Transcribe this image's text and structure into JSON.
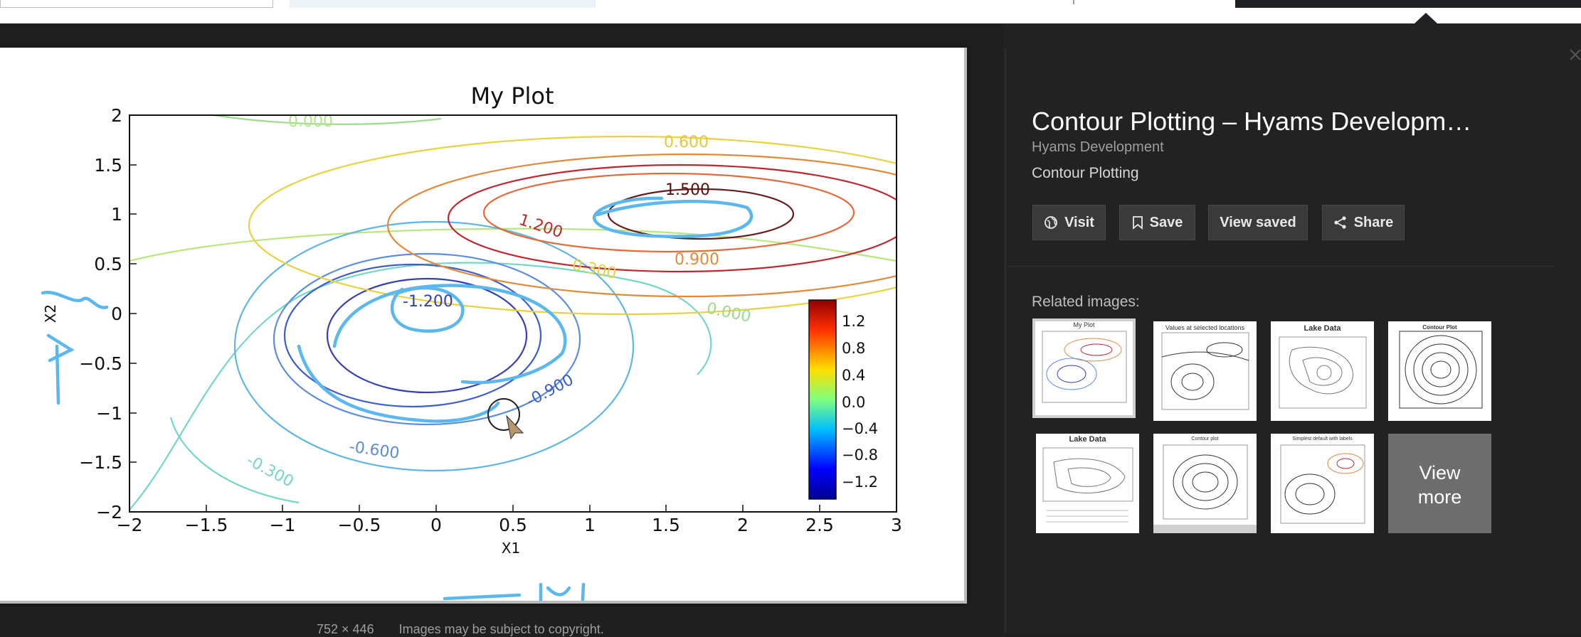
{
  "viewer": {
    "caption_dimensions": "752 × 446",
    "caption_copyright": "Images may be subject to copyright."
  },
  "detail": {
    "title": "Contour Plotting – Hyams Developm…",
    "site": "Hyams Development",
    "subtitle": "Contour Plotting",
    "buttons": {
      "visit": "Visit",
      "save": "Save",
      "view_saved": "View saved",
      "share": "Share"
    },
    "related_label": "Related images:",
    "related": [
      {
        "caption": "My Plot"
      },
      {
        "caption": "Values at selected locations"
      },
      {
        "caption": "Lake Data"
      },
      {
        "caption": "Contour Plot"
      },
      {
        "caption": "Lake Data"
      },
      {
        "caption": "Contour plot"
      },
      {
        "caption": "Simplest default with labels"
      },
      {
        "caption": ""
      }
    ],
    "view_more_line1": "View",
    "view_more_line2": "more"
  },
  "chart_data": {
    "type": "contour",
    "title": "My Plot",
    "xlabel": "X1",
    "ylabel": "X2",
    "xlim": [
      -2,
      3
    ],
    "ylim": [
      -2,
      2
    ],
    "xticks": [
      "−2",
      "−1.5",
      "−1",
      "−0.5",
      "0",
      "0.5",
      "1",
      "1.5",
      "2",
      "2.5",
      "3"
    ],
    "yticks": [
      "2",
      "1.5",
      "1",
      "0.5",
      "0",
      "−0.5",
      "−1",
      "−1.5",
      "−2"
    ],
    "colorbar_ticks": [
      "1.2",
      "0.8",
      "0.4",
      "0.0",
      "−0.4",
      "−0.8",
      "−1.2"
    ],
    "contour_labels": [
      "0.000",
      "0.600",
      "1.500",
      "1.200",
      "0.900",
      "0.300",
      "0.000",
      "-1.200",
      "-0.900",
      "-0.600",
      "-0.300"
    ],
    "colors": {
      "hot": "#c0272d",
      "orange": "#e3893a",
      "yellow": "#e9d23f",
      "green": "#9bdc8a",
      "cyan": "#74d6c8",
      "blue": "#5b8de0",
      "dark_blue": "#3540b8",
      "ink": "#5ab8ee"
    }
  }
}
